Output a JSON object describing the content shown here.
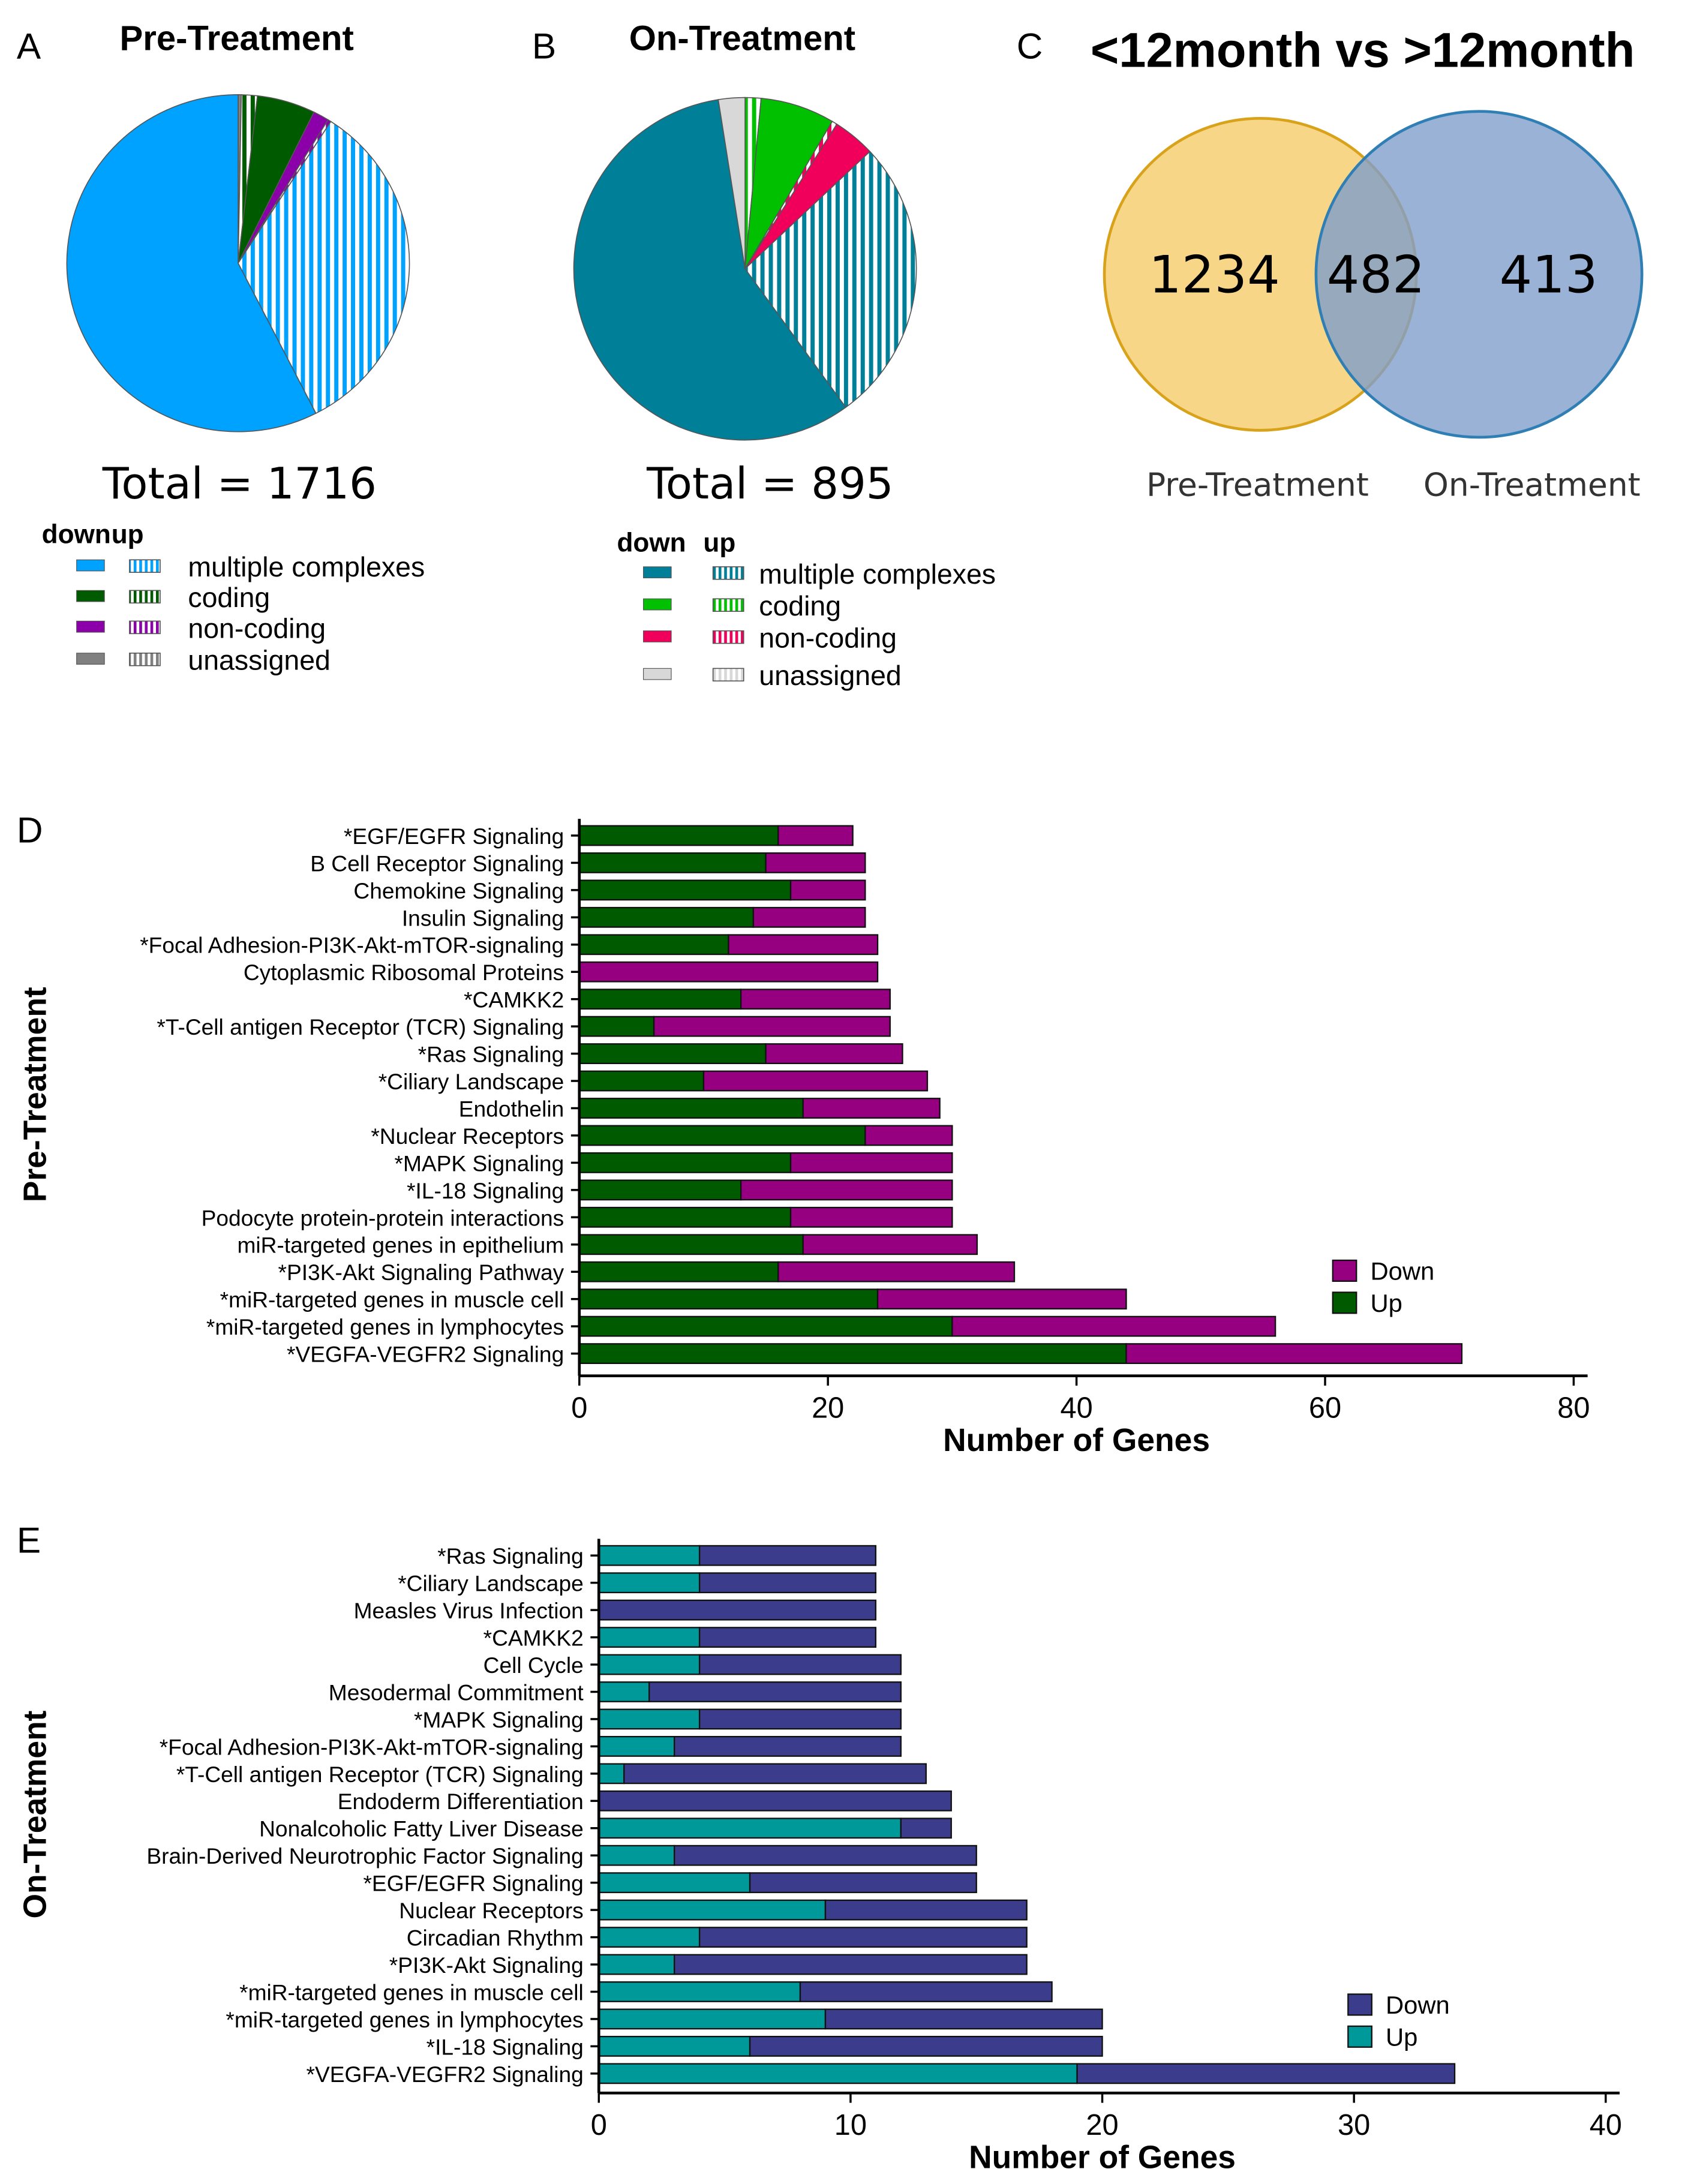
{
  "colors": {
    "pre_multiple": "#00a2ff",
    "pre_coding": "#005a00",
    "pre_noncoding": "#8b00a8",
    "pre_unassigned": "#808080",
    "on_multiple": "#007f99",
    "on_coding": "#00c000",
    "on_noncoding": "#f0005a",
    "on_unassigned": "#d8d8d8",
    "d_up": "#005a00",
    "d_down": "#960080",
    "e_up": "#009999",
    "e_down": "#3c3c8c",
    "venn_left": "#f6cf73",
    "venn_left_stroke": "#d9a21b",
    "venn_right": "#7f9fcb",
    "venn_right_stroke": "#2f7fb5"
  },
  "chart_data": [
    {
      "panel": "A",
      "type": "pie",
      "title": "Pre-Treatment",
      "total_label": "Total = 1716",
      "legend_header": {
        "down": "down",
        "up": "up"
      },
      "legend": [
        "multiple complexes",
        "coding",
        "non-coding",
        "unassigned"
      ],
      "slices_percent_estimated": [
        {
          "category": "unassigned",
          "direction": "down",
          "value": 0.3
        },
        {
          "category": "coding",
          "direction": "up",
          "value": 1.5
        },
        {
          "category": "coding",
          "direction": "down",
          "value": 5.5
        },
        {
          "category": "non-coding",
          "direction": "down",
          "value": 1.5
        },
        {
          "category": "non-coding",
          "direction": "up",
          "value": 0.3
        },
        {
          "category": "multiple complexes",
          "direction": "up",
          "value": 33.4
        },
        {
          "category": "multiple complexes",
          "direction": "down",
          "value": 57.5
        }
      ]
    },
    {
      "panel": "B",
      "type": "pie",
      "title": "On-Treatment",
      "total_label": "Total = 895",
      "legend_header": {
        "down": "down",
        "up": "up"
      },
      "legend": [
        "multiple complexes",
        "coding",
        "non-coding",
        "unassigned"
      ],
      "slices_percent_estimated": [
        {
          "category": "coding",
          "direction": "up",
          "value": 1.5
        },
        {
          "category": "coding",
          "direction": "down",
          "value": 7.0
        },
        {
          "category": "non-coding",
          "direction": "up",
          "value": 0.5
        },
        {
          "category": "non-coding",
          "direction": "down",
          "value": 4.0
        },
        {
          "category": "multiple complexes",
          "direction": "up",
          "value": 27.0
        },
        {
          "category": "multiple complexes",
          "direction": "down",
          "value": 57.5
        },
        {
          "category": "unassigned",
          "direction": "down",
          "value": 2.5
        }
      ]
    },
    {
      "panel": "C",
      "type": "venn",
      "title": "<12month vs >12month",
      "sets": [
        "Pre-Treatment",
        "On-Treatment"
      ],
      "values": {
        "left_only": "1234",
        "overlap": "482",
        "right_only": "413"
      }
    },
    {
      "panel": "D",
      "type": "bar",
      "orientation": "horizontal",
      "stacked": true,
      "ylabel": "Pre-Treatment",
      "xlabel": "Number of Genes",
      "xlim": [
        0,
        80
      ],
      "xticks": [
        "0",
        "20",
        "40",
        "60",
        "80"
      ],
      "legend": [
        "Down",
        "Up"
      ],
      "legend_position": "bottom-right",
      "categories": [
        "*EGF/EGFR Signaling",
        "B Cell Receptor Signaling",
        "Chemokine Signaling",
        "Insulin Signaling",
        "*Focal Adhesion-PI3K-Akt-mTOR-signaling",
        "Cytoplasmic Ribosomal Proteins",
        "*CAMKK2",
        "*T-Cell antigen Receptor (TCR) Signaling",
        "*Ras Signaling",
        "*Ciliary Landscape",
        "Endothelin",
        "*Nuclear Receptors",
        "*MAPK Signaling",
        "*IL-18 Signaling",
        "Podocyte protein-protein interactions",
        "miR-targeted genes in epithelium",
        "*PI3K-Akt Signaling Pathway",
        "*miR-targeted genes in muscle cell",
        "*miR-targeted genes in lymphocytes",
        "*VEGFA-VEGFR2 Signaling"
      ],
      "series": [
        {
          "name": "Up",
          "values": [
            16,
            15,
            17,
            14,
            12,
            0,
            13,
            6,
            15,
            10,
            18,
            23,
            17,
            13,
            17,
            18,
            16,
            24,
            30,
            44
          ]
        },
        {
          "name": "Down",
          "values": [
            6,
            8,
            6,
            9,
            12,
            24,
            12,
            19,
            11,
            18,
            11,
            7,
            13,
            17,
            13,
            14,
            19,
            20,
            26,
            27
          ]
        }
      ]
    },
    {
      "panel": "E",
      "type": "bar",
      "orientation": "horizontal",
      "stacked": true,
      "ylabel": "On-Treatment",
      "xlabel": "Number of Genes",
      "xlim": [
        0,
        40
      ],
      "xticks": [
        "0",
        "10",
        "20",
        "30",
        "40"
      ],
      "legend": [
        "Down",
        "Up"
      ],
      "legend_position": "bottom-right",
      "categories": [
        "*Ras Signaling",
        "*Ciliary Landscape",
        "Measles Virus Infection",
        "*CAMKK2",
        "Cell Cycle",
        "Mesodermal Commitment",
        "*MAPK Signaling",
        "*Focal Adhesion-PI3K-Akt-mTOR-signaling",
        "*T-Cell antigen Receptor (TCR) Signaling",
        "Endoderm Differentiation",
        "Nonalcoholic Fatty Liver Disease",
        "Brain-Derived Neurotrophic Factor Signaling",
        "*EGF/EGFR Signaling",
        "Nuclear Receptors",
        "Circadian Rhythm",
        "*PI3K-Akt Signaling",
        "*miR-targeted genes in muscle cell",
        "*miR-targeted genes in lymphocytes",
        "*IL-18 Signaling",
        "*VEGFA-VEGFR2 Signaling"
      ],
      "series": [
        {
          "name": "Up",
          "values": [
            4,
            4,
            0,
            4,
            4,
            2,
            4,
            3,
            1,
            0,
            12,
            3,
            6,
            9,
            4,
            3,
            8,
            9,
            6,
            19
          ]
        },
        {
          "name": "Down",
          "values": [
            7,
            7,
            11,
            7,
            8,
            10,
            8,
            9,
            12,
            14,
            2,
            12,
            9,
            8,
            13,
            14,
            10,
            11,
            14,
            15
          ]
        }
      ]
    }
  ]
}
